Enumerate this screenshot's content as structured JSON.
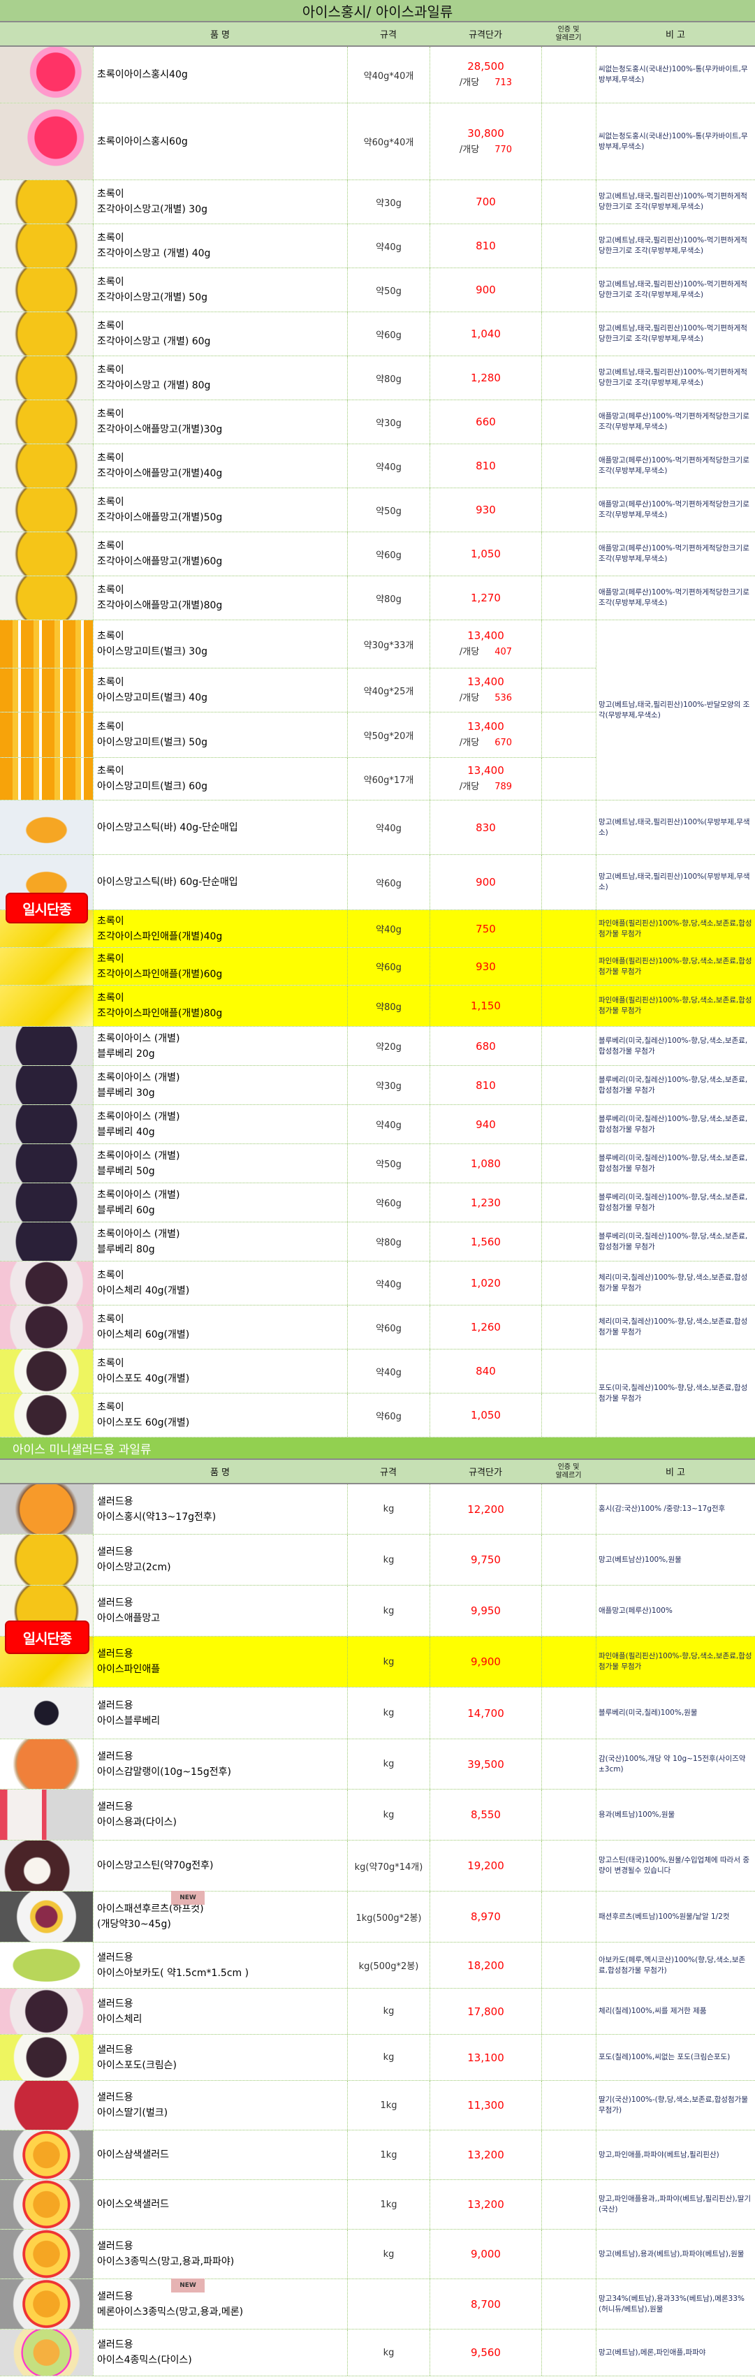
{
  "section1": {
    "title": "아이스홍시/ 아이스과일류",
    "headers": {
      "name": "품          명",
      "spec": "규격",
      "price": "규격단가",
      "cert": "인증 및\n알레르기",
      "note": "비   고"
    },
    "discontinued_badge": "일시단종",
    "merged_notes": {
      "mango_bulk": "망고(베트남,태국,필리핀산)100%-반달모양의 조각(무방부제,무색소)",
      "grape": "포도(미국,칠레산)100%-향,당,색소,보존료,합성첨가물 무첨가"
    },
    "rows": [
      {
        "image": "persimmon-cup-photo",
        "name": [
          "초록이아이스홍시40g"
        ],
        "spec": "약40g*40개",
        "price": "28,500",
        "unit_label": "/개당",
        "unit_price": "713",
        "note": "씨없는청도홍시(국내산)100%-통(무카바이트,무방부제,무색소)"
      },
      {
        "image": "persimmon-cup-photo",
        "name": [
          "초록이아이스홍시60g"
        ],
        "spec": "약60g*40개",
        "price": "30,800",
        "unit_label": "/개당",
        "unit_price": "770",
        "note": "씨없는청도홍시(국내산)100%-통(무카바이트,무방부제,무색소)"
      },
      {
        "image": "mango-piece-photo",
        "name": [
          "초록이",
          "조각아이스망고(개별) 30g"
        ],
        "spec": "약30g",
        "price": "700",
        "note": "망고(베트남,태국,필리핀산)100%-먹기편하게적당한크기로 조각(무방부제,무색소)"
      },
      {
        "image": "mango-piece-photo",
        "name": [
          "초록이",
          "조각아이스망고 (개별) 40g"
        ],
        "spec": "약40g",
        "price": "810",
        "note": "망고(베트남,태국,필리핀산)100%-먹기편하게적당한크기로 조각(무방부제,무색소)"
      },
      {
        "image": "mango-piece-photo",
        "name": [
          "초록이",
          "조각아이스망고(개별) 50g"
        ],
        "spec": "약50g",
        "price": "900",
        "note": "망고(베트남,태국,필리핀산)100%-먹기편하게적당한크기로 조각(무방부제,무색소)"
      },
      {
        "image": "mango-piece-photo",
        "name": [
          "초록이",
          "조각아이스망고 (개별) 60g"
        ],
        "spec": "약60g",
        "price": "1,040",
        "note": "망고(베트남,태국,필리핀산)100%-먹기편하게적당한크기로 조각(무방부제,무색소)"
      },
      {
        "image": "mango-piece-photo",
        "name": [
          "초록이",
          "조각아이스망고 (개별) 80g"
        ],
        "spec": "약80g",
        "price": "1,280",
        "note": "망고(베트남,태국,필리핀산)100%-먹기편하게적당한크기로 조각(무방부제,무색소)"
      },
      {
        "image": "mango-piece-photo",
        "name": [
          "초록이",
          "조각아이스애플망고(개별)30g"
        ],
        "spec": "약30g",
        "price": "660",
        "note": "애플망고(페루산)100%-먹기편하게적당한크기로 조각(무방부제,무색소)"
      },
      {
        "image": "mango-piece-photo",
        "name": [
          "초록이",
          "조각아이스애플망고(개별)40g"
        ],
        "spec": "약40g",
        "price": "810",
        "note": "애플망고(페루산)100%-먹기편하게적당한크기로 조각(무방부제,무색소)"
      },
      {
        "image": "mango-piece-photo",
        "name": [
          "초록이",
          "조각아이스애플망고(개별)50g"
        ],
        "spec": "약50g",
        "price": "930",
        "note": "애플망고(페루산)100%-먹기편하게적당한크기로 조각(무방부제,무색소)"
      },
      {
        "image": "mango-piece-photo",
        "name": [
          "초록이",
          "조각아이스애플망고(개별)60g"
        ],
        "spec": "약60g",
        "price": "1,050",
        "note": "애플망고(페루산)100%-먹기편하게적당한크기로 조각(무방부제,무색소)"
      },
      {
        "image": "mango-piece-photo",
        "name": [
          "초록이",
          "조각아이스애플망고(개별)80g"
        ],
        "spec": "약80g",
        "price": "1,270",
        "note": "애플망고(페루산)100%-먹기편하게적당한크기로 조각(무방부제,무색소)"
      },
      {
        "image": "mango-bulk-photo",
        "name": [
          "초록이",
          "아이스망고미트(벌크) 30g"
        ],
        "spec": "약30g*33개",
        "price": "13,400",
        "unit_label": "/개당",
        "unit_price": "407"
      },
      {
        "image": "mango-bulk-photo",
        "name": [
          "초록이",
          "아이스망고미트(벌크) 40g"
        ],
        "spec": "약40g*25개",
        "price": "13,400",
        "unit_label": "/개당",
        "unit_price": "536"
      },
      {
        "image": "mango-bulk-photo",
        "name": [
          "초록이",
          "아이스망고미트(벌크) 50g"
        ],
        "spec": "약50g*20개",
        "price": "13,400",
        "unit_label": "/개당",
        "unit_price": "670"
      },
      {
        "image": "mango-bulk-photo",
        "name": [
          "초록이",
          "아이스망고미트(벌크) 60g"
        ],
        "spec": "약60g*17개",
        "price": "13,400",
        "unit_label": "/개당",
        "unit_price": "789"
      },
      {
        "image": "mango-stick-photo",
        "name": [
          "아이스망고스틱(바) 40g-단순매입"
        ],
        "spec": "약40g",
        "price": "830",
        "note": "망고(베트남,태국,필리핀산)100%(무방부제,무색소)"
      },
      {
        "image": "mango-stick-photo",
        "name": [
          "아이스망고스틱(바) 60g-단순매입"
        ],
        "spec": "약60g",
        "price": "900",
        "note": "망고(베트남,태국,필리핀산)100%(무방부제,무색소)"
      },
      {
        "image": "pineapple-photo",
        "highlight": true,
        "name": [
          "초록이",
          "조각아이스파인애플(개별)40g"
        ],
        "spec": "약40g",
        "price": "750",
        "note": "파인애플(필리핀산)100%-향,당,색소,보존료,합성첨가물 무첨가"
      },
      {
        "image": "pineapple-photo",
        "highlight": true,
        "name": [
          "초록이",
          "조각아이스파인애플(개별)60g"
        ],
        "spec": "약60g",
        "price": "930",
        "note": "파인애플(필리핀산)100%-향,당,색소,보존료,합성첨가물 무첨가"
      },
      {
        "image": "pineapple-photo",
        "highlight": true,
        "name": [
          "초록이",
          "조각아이스파인애플(개별)80g"
        ],
        "spec": "약80g",
        "price": "1,150",
        "note": "파인애플(필리핀산)100%-향,당,색소,보존료,합성첨가물 무첨가"
      },
      {
        "image": "blueberry-photo",
        "name": [
          "초록이아이스 (개별)",
          "블루베리 20g"
        ],
        "spec": "약20g",
        "price": "680",
        "note": "블루베리(미국,칠레산)100%-향,당,색소,보존료,합성첨가물 무첨가"
      },
      {
        "image": "blueberry-photo",
        "name": [
          "초록이아이스 (개별)",
          "블루베리 30g"
        ],
        "spec": "약30g",
        "price": "810",
        "note": "블루베리(미국,칠레산)100%-향,당,색소,보존료,합성첨가물 무첨가"
      },
      {
        "image": "blueberry-photo",
        "name": [
          "초록이아이스 (개별)",
          "블루베리 40g"
        ],
        "spec": "약40g",
        "price": "940",
        "note": "블루베리(미국,칠레산)100%-향,당,색소,보존료,합성첨가물 무첨가"
      },
      {
        "image": "blueberry-photo",
        "name": [
          "초록이아이스 (개별)",
          "블루베리 50g"
        ],
        "spec": "약50g",
        "price": "1,080",
        "note": "블루베리(미국,칠레산)100%-향,당,색소,보존료,합성첨가물 무첨가"
      },
      {
        "image": "blueberry-photo",
        "name": [
          "초록이아이스 (개별)",
          "블루베리 60g"
        ],
        "spec": "약60g",
        "price": "1,230",
        "note": "블루베리(미국,칠레산)100%-향,당,색소,보존료,합성첨가물 무첨가"
      },
      {
        "image": "blueberry-photo",
        "name": [
          "초록이아이스 (개별)",
          "블루베리 80g"
        ],
        "spec": "약80g",
        "price": "1,560",
        "note": "블루베리(미국,칠레산)100%-향,당,색소,보존료,합성첨가물 무첨가"
      },
      {
        "image": "cherry-photo",
        "name": [
          "초록이",
          "아이스체리 40g(개별)"
        ],
        "spec": "약40g",
        "price": "1,020",
        "note": "체리(미국,칠레산)100%-향,당,색소,보존료,합성첨가물 무첨가"
      },
      {
        "image": "cherry-photo",
        "name": [
          "초록이",
          "아이스체리 60g(개별)"
        ],
        "spec": "약60g",
        "price": "1,260",
        "note": "체리(미국,칠레산)100%-향,당,색소,보존료,합성첨가물 무첨가"
      },
      {
        "image": "grape-photo",
        "name": [
          "초록이",
          "아이스포도 40g(개별)"
        ],
        "spec": "약40g",
        "price": "840"
      },
      {
        "image": "grape-photo",
        "name": [
          "초록이",
          "아이스포도 60g(개별)"
        ],
        "spec": "약60g",
        "price": "1,050"
      }
    ]
  },
  "section2": {
    "title": "아이스 미니샐러드용 과일류",
    "headers": {
      "name": "품          명",
      "spec": "규격",
      "price": "규격단가",
      "cert": "인증 및\n알레르기",
      "note": "비   고"
    },
    "discontinued_badge": "일시단종",
    "new_badge": "NEW",
    "rows": [
      {
        "image": "persimmon-photo",
        "name": [
          "샐러드용",
          "아이스홍시(약13~17g전후)"
        ],
        "spec": "kg",
        "price": "12,200",
        "note": "홍시(감:국산)100% /중량:13~17g전후"
      },
      {
        "image": "mango-piece-photo",
        "name": [
          "샐러드용",
          "아이스망고(2cm)"
        ],
        "spec": "kg",
        "price": "9,750",
        "note": "망고(베트남산)100%,원물"
      },
      {
        "image": "mango-piece-photo",
        "name": [
          "샐러드용",
          "아이스애플망고"
        ],
        "spec": "kg",
        "price": "9,950",
        "note": "애플망고(페루산)100%"
      },
      {
        "image": "pineapple-photo",
        "highlight": true,
        "name": [
          "샐러드용",
          "아이스파인애플"
        ],
        "spec": "kg",
        "price": "9,900",
        "note": "파인애플(필리핀산)100%-향,당,색소,보존료,합성첨가물 무첨가"
      },
      {
        "image": "blueberry-bowl-photo",
        "name": [
          "샐러드용",
          "아이스블루베리"
        ],
        "spec": "kg",
        "price": "14,700",
        "note": "블루베리(미국,칠레)100%,원물"
      },
      {
        "image": "dried-persimmon-photo",
        "name": [
          "샐러드용",
          "아이스감말랭이(10g~15g전후)"
        ],
        "spec": "kg",
        "price": "39,500",
        "note": "감(국산)100%,개당 약 10g~15전후(사이즈약±3cm)"
      },
      {
        "image": "dragonfruit-photo",
        "name": [
          "샐러드용",
          "아이스용과(다이스)"
        ],
        "spec": "kg",
        "price": "8,550",
        "note": "용과(베트남)100%,원물"
      },
      {
        "image": "mangosteen-photo",
        "name": [
          "아이스망고스틴(약70g전후)"
        ],
        "spec": "kg(약70g*14개)",
        "price": "19,200",
        "note": "망고스틴(태국)100%,원물/수입업체에 따라서 중량이 변경될수 있습니다"
      },
      {
        "image": "passionfruit-photo",
        "is_new": true,
        "name": [
          "아이스패션후르츠(하프컷)",
          "(개당약30~45g)"
        ],
        "spec": "1kg(500g*2봉)",
        "price": "8,970",
        "note": "패션후르츠(베트남)100%원물/낱알 1/2컷"
      },
      {
        "image": "avocado-photo",
        "name": [
          "샐러드용",
          "아이스아보카도( 약1.5cm*1.5cm )"
        ],
        "spec": "kg(500g*2봉)",
        "price": "18,200",
        "note": "아보카도(페루,멕시코산)100%(향,당,색소,보존료,합성첨가물 무첨가)"
      },
      {
        "image": "cherry-photo",
        "name": [
          "샐러드용",
          "아이스체리"
        ],
        "spec": "kg",
        "price": "17,800",
        "note": "체리(칠레)100%,씨를 제거한 제품"
      },
      {
        "image": "grape-photo",
        "name": [
          "샐러드용",
          "아이스포도(크림슨)"
        ],
        "spec": "kg",
        "price": "13,100",
        "note": "포도(칠레)100%,씨없는 포도(크림슨포도)"
      },
      {
        "image": "strawberry-photo",
        "name": [
          "샐러드용",
          "아이스딸기(벌크)"
        ],
        "spec": "1kg",
        "price": "11,300",
        "note": "딸기(국산)100%-(향,당,색소,보존료,합성첨가물 무첨가)"
      },
      {
        "image": "salad-mix-photo",
        "name": [
          "아이스삼색샐러드"
        ],
        "spec": "1kg",
        "price": "13,200",
        "note": "망고,파인애플,파파야(베트남,필리핀산)"
      },
      {
        "image": "salad-mix-photo",
        "name": [
          "아이스오색샐러드"
        ],
        "spec": "1kg",
        "price": "13,200",
        "note": "망고,파인애플용과,,파파야(베트남,필리핀산),딸기(국산)"
      },
      {
        "image": "salad-mix-photo",
        "name": [
          "샐러드용",
          "아이스3종믹스(망고,용과,파파야)"
        ],
        "spec": "kg",
        "price": "9,000",
        "note": "망고(베트남),용과(베트남),파파야(베트남),원물"
      },
      {
        "image": "salad-mix-photo",
        "is_new": true,
        "name": [
          "샐러드용",
          "메론아이스3종믹스(망고,용과,메론)"
        ],
        "spec": "",
        "price": "8,700",
        "note": "망고34%(베트남),용과33%(베트남),메론33%(허니듀/베트남),원물"
      },
      {
        "image": "melon-mix-photo",
        "name": [
          "샐러드용",
          "아이스4종믹스(다이스)"
        ],
        "spec": "kg",
        "price": "9,560",
        "note": "망고(베트남),메론,파인애플,파파야"
      }
    ]
  },
  "colors": {
    "title_green": "#a9d08e",
    "section2_green": "#92d050",
    "header_green": "#c6e0b4",
    "price_red": "#ff0000",
    "highlight_yellow": "#ffff00",
    "badge_red": "#ff0000"
  }
}
